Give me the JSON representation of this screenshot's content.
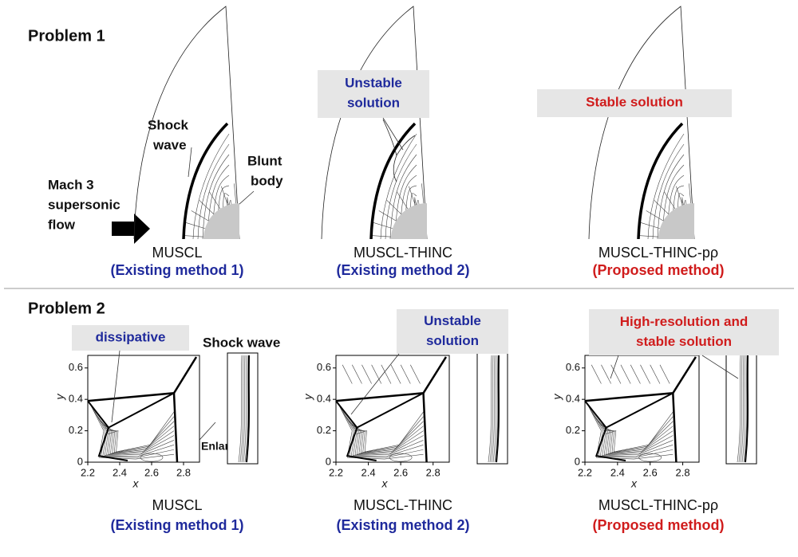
{
  "problem1": {
    "title": "Problem 1",
    "labels": {
      "shock_wave": [
        "Shock",
        "wave"
      ],
      "blunt_body": [
        "Blunt",
        "body"
      ],
      "flow": [
        "Mach 3",
        "supersonic",
        "flow"
      ]
    },
    "panels": [
      {
        "method": "MUSCL",
        "note": "(Existing method 1)"
      },
      {
        "method": "MUSCL-THINC",
        "note": "(Existing method 2)",
        "callout": [
          "Unstable",
          "solution"
        ]
      },
      {
        "method": "MUSCL-THINC-pρ",
        "note": "(Proposed method)",
        "callout": [
          "Stable solution"
        ]
      }
    ]
  },
  "problem2": {
    "title": "Problem 2",
    "labels": {
      "shock_wave": "Shock wave",
      "enlarged": "Enlarged"
    },
    "axes": {
      "xlabel": "x",
      "ylabel": "y",
      "xlim": [
        2.2,
        2.9
      ],
      "ylim": [
        0,
        0.68
      ],
      "xticks": [
        2.2,
        2.4,
        2.6,
        2.8
      ],
      "yticks": [
        0,
        0.2,
        0.4,
        0.6
      ]
    },
    "panels": [
      {
        "method": "MUSCL",
        "note": "(Existing method 1)",
        "callout": [
          "dissipative"
        ]
      },
      {
        "method": "MUSCL-THINC",
        "note": "(Existing method 2)",
        "callout": [
          "Unstable",
          "solution"
        ]
      },
      {
        "method": "MUSCL-THINC-pρ",
        "note": "(Proposed method)",
        "callout": [
          "High-resolution and",
          "stable solution"
        ]
      }
    ]
  }
}
